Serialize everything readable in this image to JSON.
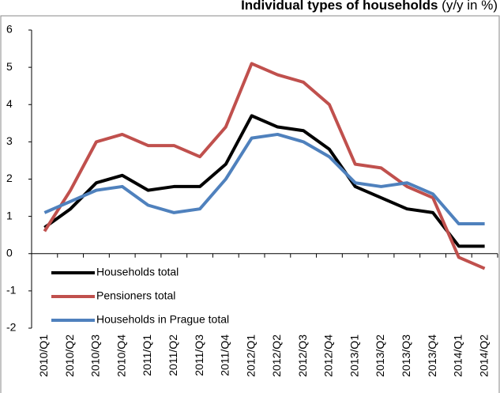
{
  "chart_data": {
    "type": "line",
    "title": "Individual types of households",
    "subtitle": "(y/y in %)",
    "categories": [
      "2010/Q1",
      "2010/Q2",
      "2010/Q3",
      "2010/Q4",
      "2011/Q1",
      "2011/Q2",
      "2011/Q3",
      "2011/Q4",
      "2012/Q1",
      "2012/Q2",
      "2012/Q3",
      "2012/Q4",
      "2013/Q1",
      "2013/Q2",
      "2013/Q3",
      "2013/Q4",
      "2014/Q1",
      "2014/Q2"
    ],
    "series": [
      {
        "name": "Households total",
        "color": "#000000",
        "values": [
          0.7,
          1.2,
          1.9,
          2.1,
          1.7,
          1.8,
          1.8,
          2.4,
          3.7,
          3.4,
          3.3,
          2.8,
          1.8,
          1.5,
          1.2,
          1.1,
          0.2,
          0.2
        ]
      },
      {
        "name": "Pensioners total",
        "color": "#c0504d",
        "values": [
          0.6,
          1.7,
          3.0,
          3.2,
          2.9,
          2.9,
          2.6,
          3.4,
          5.1,
          4.8,
          4.6,
          4.0,
          2.4,
          2.3,
          1.8,
          1.5,
          -0.1,
          -0.4
        ]
      },
      {
        "name": "Households in Prague total",
        "color": "#4f81bd",
        "values": [
          1.1,
          1.4,
          1.7,
          1.8,
          1.3,
          1.1,
          1.2,
          2.0,
          3.1,
          3.2,
          3.0,
          2.6,
          1.9,
          1.8,
          1.9,
          1.6,
          0.8,
          0.8
        ]
      }
    ],
    "ylim": [
      -2,
      6
    ],
    "yticks": [
      -2,
      -1,
      0,
      1,
      2,
      3,
      4,
      5,
      6
    ],
    "legend": "lower-left"
  }
}
